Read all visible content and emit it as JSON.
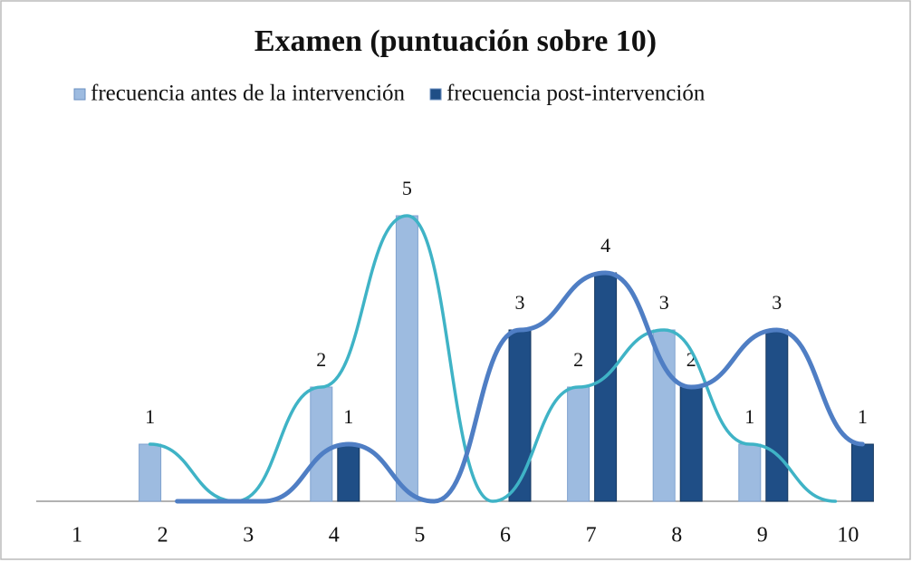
{
  "chart_data": {
    "type": "bar",
    "title": "Examen (puntuación sobre 10)",
    "categories": [
      "1",
      "2",
      "3",
      "4",
      "5",
      "6",
      "7",
      "8",
      "9",
      "10"
    ],
    "series": [
      {
        "name": "frecuencia antes de la intervención",
        "color": "#9dbbe0",
        "line_color": "#3fb3c6",
        "values": [
          0,
          1,
          0,
          2,
          5,
          0,
          2,
          3,
          1,
          0
        ]
      },
      {
        "name": "frecuencia post-intervención",
        "color": "#1f4e86",
        "line_color": "#4f7ec4",
        "values": [
          0,
          0,
          0,
          1,
          0,
          3,
          4,
          2,
          3,
          1
        ]
      }
    ],
    "legend": "top"
  }
}
